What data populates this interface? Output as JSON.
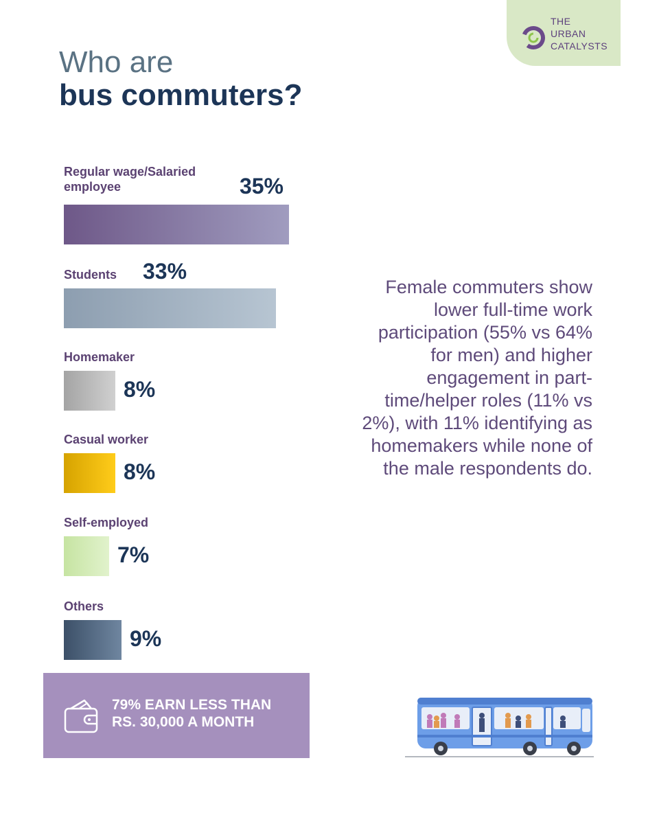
{
  "brand": {
    "logo_lines": [
      "THE",
      "URBAN",
      "CATALYSTS"
    ],
    "ring_color": "#6b4a8a",
    "arrow_color": "#8fc44d"
  },
  "title": {
    "line1": "Who are",
    "line2": "bus commuters?"
  },
  "chart_data": {
    "type": "bar",
    "orientation": "horizontal",
    "categories": [
      "Regular wage/Salaried employee",
      "Students",
      "Homemaker",
      "Casual worker",
      "Self-employed",
      "Others"
    ],
    "category_lines": [
      [
        "Regular wage/Salaried",
        "employee"
      ],
      [
        "Students"
      ],
      [
        "Homemaker"
      ],
      [
        "Casual worker"
      ],
      [
        "Self-employed"
      ],
      [
        "Others"
      ]
    ],
    "values": [
      35,
      33,
      8,
      8,
      7,
      9
    ],
    "value_labels": [
      "35%",
      "33%",
      "8%",
      "8%",
      "7%",
      "9%"
    ],
    "colors": [
      [
        "#6e5888",
        "#a09cbf"
      ],
      [
        "#8d9eb0",
        "#b7c5d2"
      ],
      [
        "#a4a4a4",
        "#d0d0d0"
      ],
      [
        "#d6a300",
        "#ffcc1a"
      ],
      [
        "#c6e4a2",
        "#e1f2cc"
      ],
      [
        "#3c5068",
        "#6f86a0"
      ]
    ],
    "xlim": [
      0,
      35
    ],
    "grid": false,
    "legend": "none"
  },
  "note": "Female commuters show lower full-time work participation (55% vs 64% for men) and higher engagement in part-time/helper roles (11% vs 2%), with 11% identifying as homemakers while none of the male respondents do.",
  "callout": {
    "line1": "79% EARN LESS THAN",
    "line2": "RS. 30,000 A MONTH",
    "icon": "wallet-icon"
  },
  "illustration": {
    "icon": "bus-icon",
    "body_color": "#6d9ee8"
  }
}
